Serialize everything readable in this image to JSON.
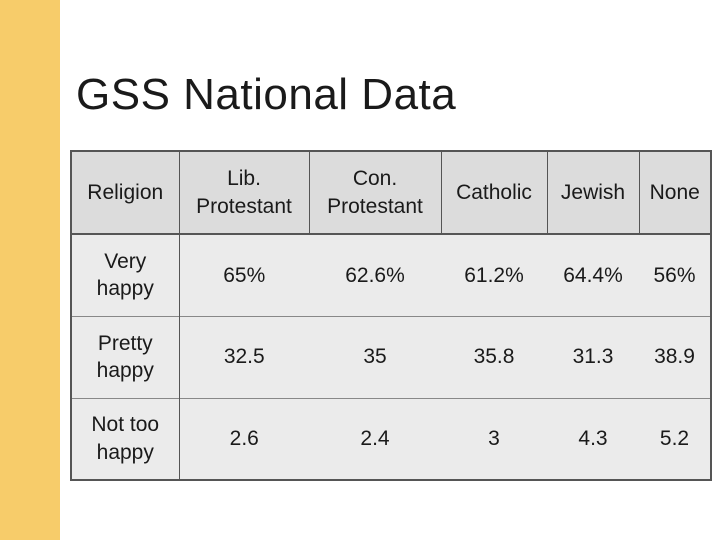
{
  "slide": {
    "title": "GSS National Data"
  },
  "table": {
    "headers": [
      "Religion",
      "Lib. Protestant",
      "Con. Protestant",
      "Catholic",
      "Jewish",
      "None"
    ],
    "rows": [
      {
        "label": "Very happy",
        "values": [
          "65%",
          "62.6%",
          "61.2%",
          "64.4%",
          "56%"
        ]
      },
      {
        "label": "Pretty happy",
        "values": [
          "32.5",
          "35",
          "35.8",
          "31.3",
          "38.9"
        ]
      },
      {
        "label": "Not too happy",
        "values": [
          "2.6",
          "2.4",
          "3",
          "4.3",
          "5.2"
        ]
      }
    ]
  },
  "colors": {
    "left_bar": "#f7cc6a",
    "header_bg": "#dcdcdc",
    "body_bg": "#ebebeb"
  }
}
